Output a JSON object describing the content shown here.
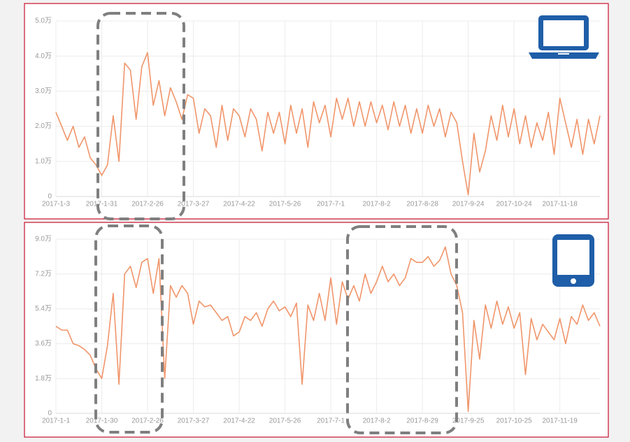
{
  "chart_data": [
    {
      "type": "line",
      "categories": [
        "2017-1-3",
        null,
        null,
        null,
        null,
        null,
        null,
        null,
        "2017-1-31",
        null,
        null,
        null,
        null,
        null,
        null,
        null,
        "2017-2-26",
        null,
        null,
        null,
        null,
        null,
        null,
        null,
        "2017-3-27",
        null,
        null,
        null,
        null,
        null,
        null,
        null,
        "2017-4-22",
        null,
        null,
        null,
        null,
        null,
        null,
        null,
        "2017-5-26",
        null,
        null,
        null,
        null,
        null,
        null,
        null,
        "2017-7-1",
        null,
        null,
        null,
        null,
        null,
        null,
        null,
        "2017-8-2",
        null,
        null,
        null,
        null,
        null,
        null,
        null,
        "2017-8-28",
        null,
        null,
        null,
        null,
        null,
        null,
        null,
        "2017-9-24",
        null,
        null,
        null,
        null,
        null,
        null,
        null,
        "2017-10-24",
        null,
        null,
        null,
        null,
        null,
        null,
        null,
        "2017-11-18",
        null,
        null,
        null,
        null,
        null,
        null,
        null
      ],
      "values": [
        2.4,
        2.0,
        1.6,
        2.0,
        1.4,
        1.7,
        1.1,
        0.9,
        0.6,
        0.9,
        2.3,
        1.0,
        3.8,
        3.6,
        2.2,
        3.7,
        4.1,
        2.6,
        3.3,
        2.3,
        3.1,
        2.7,
        2.2,
        2.9,
        2.8,
        1.8,
        2.5,
        2.3,
        1.4,
        2.6,
        1.6,
        2.5,
        2.3,
        1.7,
        2.5,
        2.2,
        1.3,
        2.4,
        1.8,
        2.4,
        1.5,
        2.6,
        1.8,
        2.5,
        1.4,
        2.7,
        2.1,
        2.6,
        1.7,
        2.8,
        2.2,
        2.8,
        2.0,
        2.7,
        2.0,
        2.7,
        2.1,
        2.6,
        1.9,
        2.7,
        2.0,
        2.6,
        1.8,
        2.5,
        1.8,
        2.6,
        2.0,
        2.5,
        1.7,
        2.4,
        2.1,
        1.0,
        0.05,
        1.8,
        0.7,
        1.3,
        2.3,
        1.6,
        2.6,
        1.7,
        2.5,
        1.5,
        2.3,
        1.4,
        2.1,
        1.6,
        2.4,
        1.2,
        2.8,
        2.1,
        1.4,
        2.2,
        1.2,
        2.2,
        1.5,
        2.3
      ],
      "color": "#f0956a",
      "ylim": [
        0,
        5
      ],
      "yticks": [
        0,
        {
          "value": 1,
          "label": "1.0万"
        },
        {
          "value": 2,
          "label": "2.0万"
        },
        {
          "value": 3,
          "label": "3.0万"
        },
        {
          "value": 4,
          "label": "4.0万"
        },
        {
          "value": 5,
          "label": "5.0万"
        }
      ],
      "grid": true
    },
    {
      "type": "line",
      "categories": [
        "2017-1-1",
        null,
        null,
        null,
        null,
        null,
        null,
        null,
        "2017-1-30",
        null,
        null,
        null,
        null,
        null,
        null,
        null,
        "2017-2-26",
        null,
        null,
        null,
        null,
        null,
        null,
        null,
        "2017-3-27",
        null,
        null,
        null,
        null,
        null,
        null,
        null,
        "2017-4-22",
        null,
        null,
        null,
        null,
        null,
        null,
        null,
        "2017-5-26",
        null,
        null,
        null,
        null,
        null,
        null,
        null,
        "2017-7-1",
        null,
        null,
        null,
        null,
        null,
        null,
        null,
        "2017-8-2",
        null,
        null,
        null,
        null,
        null,
        null,
        null,
        "2017-8-29",
        null,
        null,
        null,
        null,
        null,
        null,
        null,
        "2017-9-25",
        null,
        null,
        null,
        null,
        null,
        null,
        null,
        "2017-10-25",
        null,
        null,
        null,
        null,
        null,
        null,
        null,
        "2017-11-19",
        null,
        null,
        null,
        null,
        null,
        null,
        null
      ],
      "values": [
        4.5,
        4.3,
        4.3,
        3.6,
        3.5,
        3.3,
        3.0,
        2.3,
        1.8,
        3.5,
        6.2,
        1.5,
        7.2,
        7.6,
        6.5,
        7.8,
        8.0,
        6.2,
        8.0,
        1.8,
        6.6,
        6.0,
        6.6,
        6.2,
        4.6,
        5.8,
        5.5,
        5.6,
        5.2,
        4.8,
        5.0,
        4.0,
        4.2,
        5.0,
        4.8,
        5.2,
        4.5,
        5.4,
        5.8,
        5.3,
        5.5,
        5.0,
        5.7,
        1.5,
        5.6,
        4.8,
        6.2,
        4.8,
        7.0,
        4.6,
        6.8,
        5.9,
        6.6,
        5.8,
        7.2,
        6.2,
        6.8,
        7.6,
        6.8,
        7.2,
        6.6,
        7.0,
        8.0,
        7.8,
        7.8,
        8.1,
        7.6,
        7.9,
        8.6,
        7.2,
        6.6,
        5.2,
        0.1,
        4.8,
        2.8,
        5.6,
        4.4,
        5.8,
        4.6,
        5.5,
        4.4,
        5.2,
        2.0,
        4.9,
        3.8,
        4.6,
        4.2,
        3.8,
        4.9,
        3.6,
        5.0,
        4.6,
        5.6,
        4.8,
        5.2,
        4.5
      ],
      "color": "#f0956a",
      "ylim": [
        0,
        9
      ],
      "yticks": [
        0,
        {
          "value": 1.8,
          "label": "1.8万"
        },
        {
          "value": 3.6,
          "label": "3.6万"
        },
        {
          "value": 5.4,
          "label": "5.4万"
        },
        {
          "value": 7.2,
          "label": "7.2万"
        },
        {
          "value": 9,
          "label": "9.0万"
        }
      ],
      "grid": true
    }
  ]
}
